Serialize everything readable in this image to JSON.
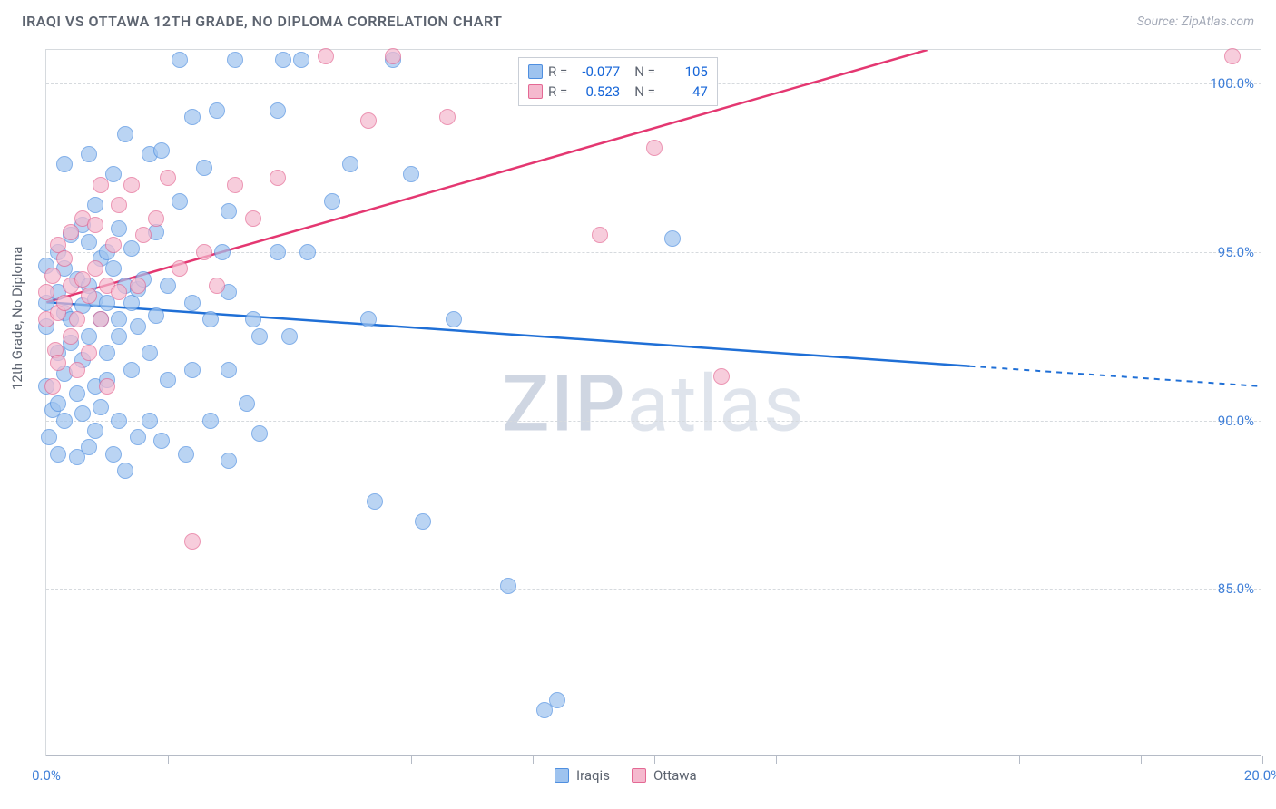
{
  "header": {
    "title": "IRAQI VS OTTAWA 12TH GRADE, NO DIPLOMA CORRELATION CHART",
    "source": "Source: ZipAtlas.com"
  },
  "chart": {
    "type": "scatter",
    "ylabel": "12th Grade, No Diploma",
    "watermark": "ZIPatlas",
    "background_color": "#ffffff",
    "grid_color": "#d6dade",
    "xlim": [
      0,
      20
    ],
    "ylim": [
      80,
      101
    ],
    "yticks": [
      85.0,
      90.0,
      95.0,
      100.0
    ],
    "ytick_labels": [
      "85.0%",
      "90.0%",
      "95.0%",
      "100.0%"
    ],
    "xticks": [
      0,
      2,
      4,
      6,
      8,
      10,
      12,
      14,
      16,
      18,
      20
    ],
    "xtick_labels_first": "0.0%",
    "xtick_labels_last": "20.0%",
    "series": {
      "iraqis": {
        "label": "Iraqis",
        "fill": "#9ec3ef",
        "stroke": "#4f8fe0",
        "line_color": "#1f6fd6",
        "r": -0.077,
        "n": 105,
        "regression": {
          "x1": 0.0,
          "y1": 93.5,
          "x2": 20.0,
          "y2": 91.0,
          "solid_until_x": 15.2
        },
        "points": [
          [
            0.0,
            93.5
          ],
          [
            0.0,
            92.8
          ],
          [
            0.0,
            91.0
          ],
          [
            0.1,
            90.3
          ],
          [
            0.05,
            89.5
          ],
          [
            0.0,
            94.6
          ],
          [
            0.2,
            93.8
          ],
          [
            0.2,
            92.0
          ],
          [
            0.2,
            95.0
          ],
          [
            0.2,
            90.5
          ],
          [
            0.2,
            89.0
          ],
          [
            0.3,
            93.2
          ],
          [
            0.3,
            94.5
          ],
          [
            0.3,
            91.4
          ],
          [
            0.3,
            90.0
          ],
          [
            0.3,
            97.6
          ],
          [
            0.4,
            93.0
          ],
          [
            0.4,
            92.3
          ],
          [
            0.4,
            95.5
          ],
          [
            0.5,
            94.2
          ],
          [
            0.5,
            90.8
          ],
          [
            0.5,
            88.9
          ],
          [
            0.6,
            93.4
          ],
          [
            0.6,
            95.8
          ],
          [
            0.6,
            91.8
          ],
          [
            0.6,
            90.2
          ],
          [
            0.7,
            94.0
          ],
          [
            0.7,
            92.5
          ],
          [
            0.7,
            89.2
          ],
          [
            0.7,
            95.3
          ],
          [
            0.7,
            97.9
          ],
          [
            0.8,
            93.6
          ],
          [
            0.8,
            91.0
          ],
          [
            0.8,
            89.7
          ],
          [
            0.8,
            96.4
          ],
          [
            0.9,
            93.0
          ],
          [
            0.9,
            94.8
          ],
          [
            0.9,
            90.4
          ],
          [
            1.0,
            93.5
          ],
          [
            1.0,
            92.0
          ],
          [
            1.0,
            95.0
          ],
          [
            1.0,
            91.2
          ],
          [
            1.1,
            94.5
          ],
          [
            1.1,
            89.0
          ],
          [
            1.1,
            97.3
          ],
          [
            1.2,
            93.0
          ],
          [
            1.2,
            92.5
          ],
          [
            1.2,
            95.7
          ],
          [
            1.2,
            90.0
          ],
          [
            1.3,
            94.0
          ],
          [
            1.3,
            98.5
          ],
          [
            1.3,
            88.5
          ],
          [
            1.4,
            93.5
          ],
          [
            1.4,
            91.5
          ],
          [
            1.4,
            95.1
          ],
          [
            1.5,
            92.8
          ],
          [
            1.5,
            93.9
          ],
          [
            1.5,
            89.5
          ],
          [
            1.6,
            94.2
          ],
          [
            1.7,
            97.9
          ],
          [
            1.7,
            92.0
          ],
          [
            1.7,
            90.0
          ],
          [
            1.8,
            95.6
          ],
          [
            1.8,
            93.1
          ],
          [
            1.9,
            89.4
          ],
          [
            1.9,
            98.0
          ],
          [
            2.0,
            94.0
          ],
          [
            2.0,
            91.2
          ],
          [
            2.2,
            100.7
          ],
          [
            2.2,
            96.5
          ],
          [
            2.3,
            89.0
          ],
          [
            2.4,
            99.0
          ],
          [
            2.4,
            93.5
          ],
          [
            2.4,
            91.5
          ],
          [
            2.6,
            97.5
          ],
          [
            2.7,
            93.0
          ],
          [
            2.7,
            90.0
          ],
          [
            2.8,
            99.2
          ],
          [
            2.9,
            95.0
          ],
          [
            3.0,
            91.5
          ],
          [
            3.0,
            93.8
          ],
          [
            3.0,
            96.2
          ],
          [
            3.0,
            88.8
          ],
          [
            3.1,
            100.7
          ],
          [
            3.3,
            90.5
          ],
          [
            3.4,
            93.0
          ],
          [
            3.5,
            92.5
          ],
          [
            3.5,
            89.6
          ],
          [
            3.8,
            99.2
          ],
          [
            3.8,
            95.0
          ],
          [
            3.9,
            100.7
          ],
          [
            4.0,
            92.5
          ],
          [
            4.2,
            100.7
          ],
          [
            4.3,
            95.0
          ],
          [
            4.7,
            96.5
          ],
          [
            5.0,
            97.6
          ],
          [
            5.3,
            93.0
          ],
          [
            5.4,
            87.6
          ],
          [
            5.7,
            100.7
          ],
          [
            6.0,
            97.3
          ],
          [
            6.2,
            87.0
          ],
          [
            6.7,
            93.0
          ],
          [
            7.6,
            85.1
          ],
          [
            8.2,
            81.4
          ],
          [
            8.4,
            81.7
          ],
          [
            10.3,
            95.4
          ]
        ]
      },
      "ottawa": {
        "label": "Ottawa",
        "fill": "#f5b9ce",
        "stroke": "#e46994",
        "line_color": "#e43771",
        "r": 0.523,
        "n": 47,
        "regression": {
          "x1": 0.0,
          "y1": 93.5,
          "x2": 14.5,
          "y2": 101.0,
          "solid_until_x": 14.5
        },
        "points": [
          [
            0.0,
            93.0
          ],
          [
            0.0,
            93.8
          ],
          [
            0.1,
            91.0
          ],
          [
            0.1,
            94.3
          ],
          [
            0.15,
            92.1
          ],
          [
            0.2,
            93.2
          ],
          [
            0.2,
            95.2
          ],
          [
            0.2,
            91.7
          ],
          [
            0.3,
            93.5
          ],
          [
            0.3,
            94.8
          ],
          [
            0.4,
            92.5
          ],
          [
            0.4,
            94.0
          ],
          [
            0.4,
            95.6
          ],
          [
            0.5,
            93.0
          ],
          [
            0.5,
            91.5
          ],
          [
            0.6,
            94.2
          ],
          [
            0.6,
            96.0
          ],
          [
            0.7,
            93.7
          ],
          [
            0.7,
            92.0
          ],
          [
            0.8,
            94.5
          ],
          [
            0.8,
            95.8
          ],
          [
            0.9,
            93.0
          ],
          [
            0.9,
            97.0
          ],
          [
            1.0,
            94.0
          ],
          [
            1.0,
            91.0
          ],
          [
            1.1,
            95.2
          ],
          [
            1.2,
            93.8
          ],
          [
            1.2,
            96.4
          ],
          [
            1.4,
            97.0
          ],
          [
            1.5,
            94.0
          ],
          [
            1.6,
            95.5
          ],
          [
            1.8,
            96.0
          ],
          [
            2.0,
            97.2
          ],
          [
            2.2,
            94.5
          ],
          [
            2.4,
            86.4
          ],
          [
            2.6,
            95.0
          ],
          [
            2.8,
            94.0
          ],
          [
            3.1,
            97.0
          ],
          [
            3.4,
            96.0
          ],
          [
            3.8,
            97.2
          ],
          [
            4.6,
            100.8
          ],
          [
            5.3,
            98.9
          ],
          [
            5.7,
            100.8
          ],
          [
            6.6,
            99.0
          ],
          [
            9.1,
            95.5
          ],
          [
            10.0,
            98.1
          ],
          [
            11.1,
            91.3
          ],
          [
            19.5,
            100.8
          ]
        ]
      }
    },
    "bottom_legend": [
      {
        "label": "Iraqis",
        "fill": "#9ec3ef",
        "stroke": "#4f8fe0"
      },
      {
        "label": "Ottawa",
        "fill": "#f5b9ce",
        "stroke": "#e46994"
      }
    ]
  }
}
